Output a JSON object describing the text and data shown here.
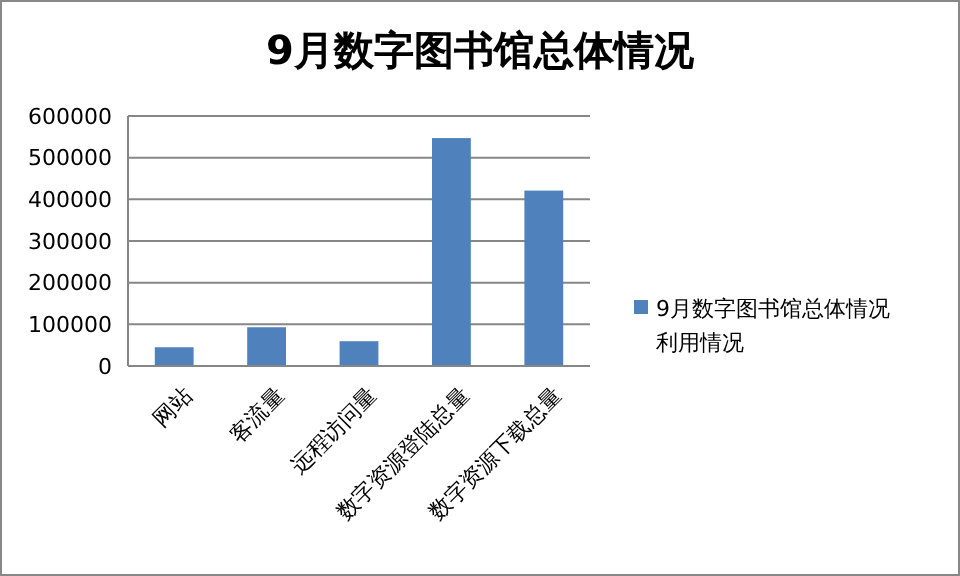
{
  "chart_data": {
    "type": "bar",
    "title": "9月数字图书馆总体情况",
    "categories": [
      "网站",
      "客流量",
      "远程访问量",
      "数字资源登陆总量",
      "数字资源下载总量"
    ],
    "series": [
      {
        "name": "9月数字图书馆总体情况利用情况",
        "color": "#4f81bd",
        "values": [
          45000,
          93000,
          59500,
          547000,
          421000
        ]
      }
    ],
    "ylim": [
      0,
      600000
    ],
    "yticks": [
      0,
      100000,
      200000,
      300000,
      400000,
      500000,
      600000
    ],
    "grid": "y",
    "legend": "right"
  }
}
